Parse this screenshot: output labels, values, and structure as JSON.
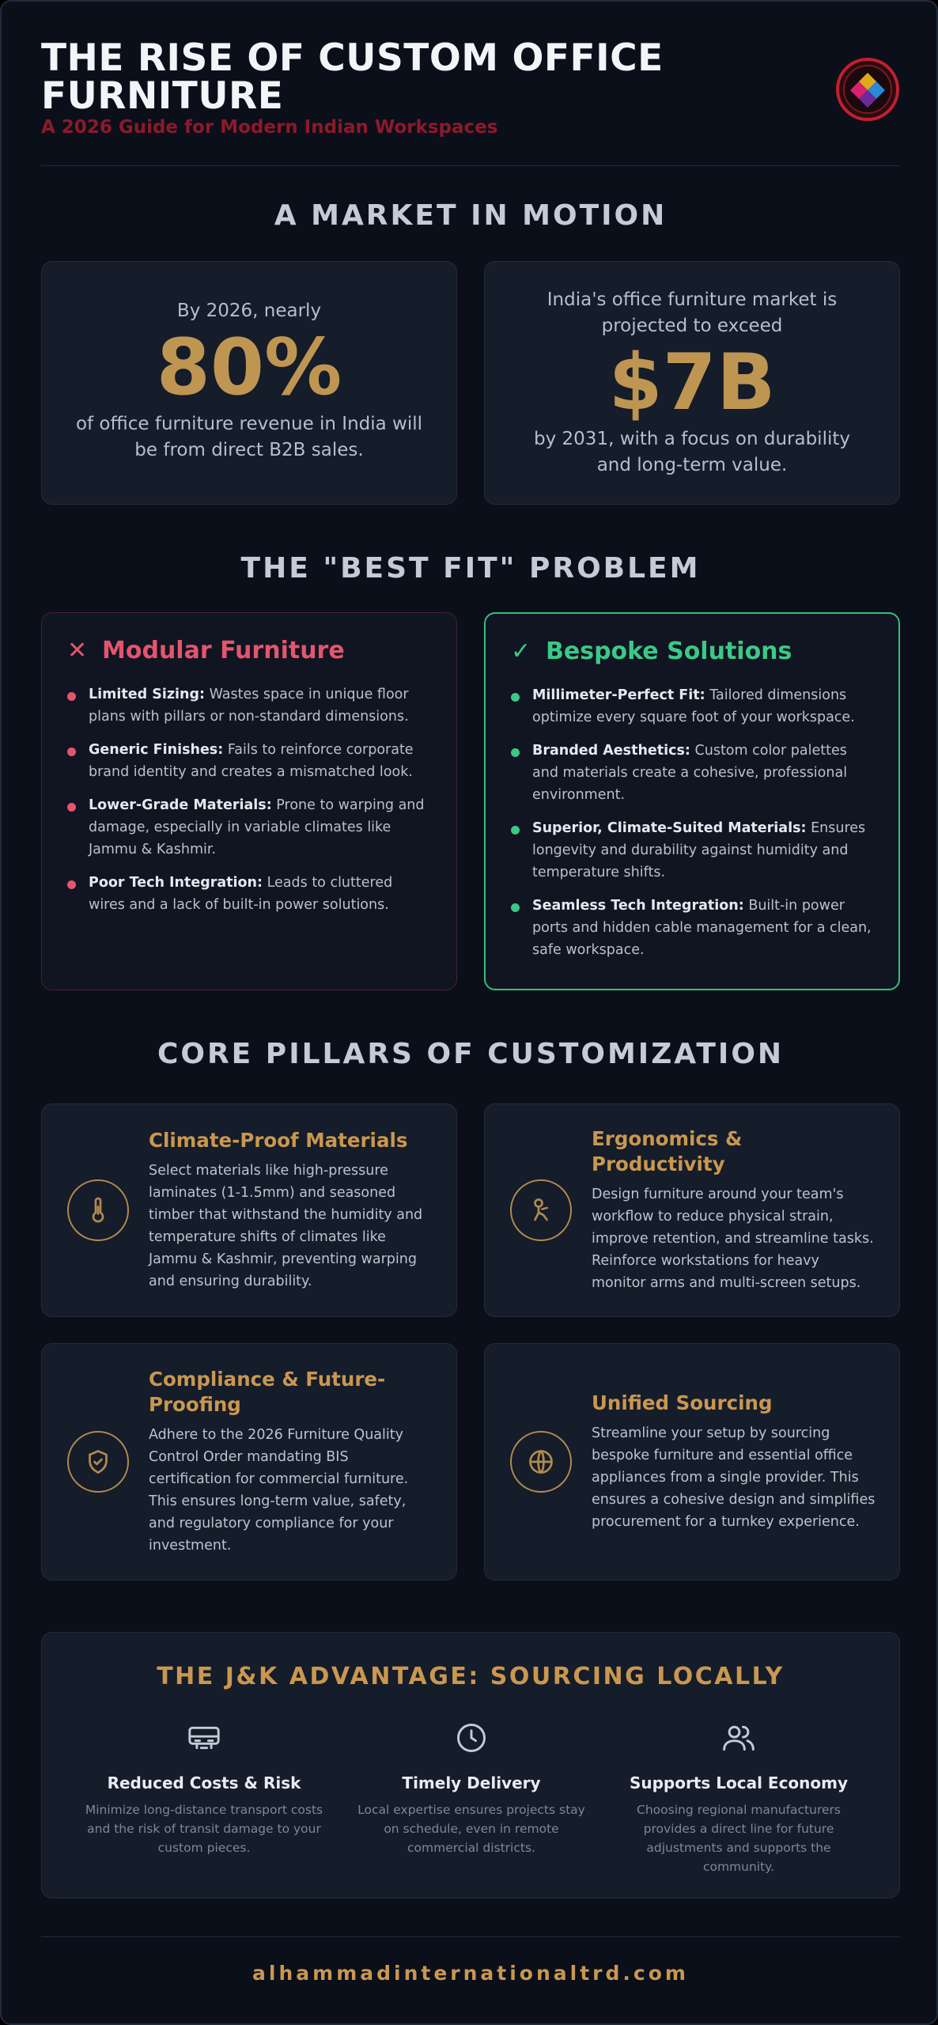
{
  "header": {
    "title": "THE RISE OF CUSTOM OFFICE FURNITURE",
    "subtitle": "A 2026 Guide for Modern Indian Workspaces"
  },
  "market": {
    "section_title": "A MARKET IN MOTION",
    "stats": [
      {
        "pre": "By 2026, nearly",
        "value": "80%",
        "post": "of office furniture revenue in India will be from direct B2B sales."
      },
      {
        "pre": "India's office furniture market is projected to exceed",
        "value": "$7B",
        "post": "by 2031, with a focus on durability and long-term value."
      }
    ]
  },
  "fit": {
    "section_title": "THE \"BEST FIT\" PROBLEM",
    "modular": {
      "heading": "Modular Furniture",
      "items": [
        {
          "label": "Limited Sizing:",
          "text": "Wastes space in unique floor plans with pillars or non-standard dimensions."
        },
        {
          "label": "Generic Finishes:",
          "text": "Fails to reinforce corporate brand identity and creates a mismatched look."
        },
        {
          "label": "Lower-Grade Materials:",
          "text": "Prone to warping and damage, especially in variable climates like Jammu & Kashmir."
        },
        {
          "label": "Poor Tech Integration:",
          "text": "Leads to cluttered wires and a lack of built-in power solutions."
        }
      ]
    },
    "bespoke": {
      "heading": "Bespoke Solutions",
      "items": [
        {
          "label": "Millimeter-Perfect Fit:",
          "text": "Tailored dimensions optimize every square foot of your workspace."
        },
        {
          "label": "Branded Aesthetics:",
          "text": "Custom color palettes and materials create a cohesive, professional environment."
        },
        {
          "label": "Superior, Climate-Suited Materials:",
          "text": "Ensures longevity and durability against humidity and temperature shifts."
        },
        {
          "label": "Seamless Tech Integration:",
          "text": "Built-in power ports and hidden cable management for a clean, safe workspace."
        }
      ]
    }
  },
  "pillars": {
    "section_title": "CORE PILLARS OF CUSTOMIZATION",
    "items": [
      {
        "icon": "thermometer-icon",
        "title": "Climate-Proof Materials",
        "body": "Select materials like high-pressure laminates (1-1.5mm) and seasoned timber that withstand the humidity and temperature shifts of climates like Jammu & Kashmir, preventing warping and ensuring durability."
      },
      {
        "icon": "ergonomics-icon",
        "title": "Ergonomics & Productivity",
        "body": "Design furniture around your team's workflow to reduce physical strain, improve retention, and streamline tasks. Reinforce workstations for heavy monitor arms and multi-screen setups."
      },
      {
        "icon": "shield-check-icon",
        "title": "Compliance & Future-Proofing",
        "body": "Adhere to the 2026 Furniture Quality Control Order mandating BIS certification for commercial furniture. This ensures long-term value, safety, and regulatory compliance for your investment."
      },
      {
        "icon": "globe-icon",
        "title": "Unified Sourcing",
        "body": "Streamline your setup by sourcing bespoke furniture and essential office appliances from a single provider. This ensures a cohesive design and simplifies procurement for a turnkey experience."
      }
    ]
  },
  "advantage": {
    "title": "THE J&K ADVANTAGE: SOURCING LOCALLY",
    "items": [
      {
        "icon": "truck-icon",
        "heading": "Reduced Costs & Risk",
        "body": "Minimize long-distance transport costs and the risk of transit damage to your custom pieces."
      },
      {
        "icon": "clock-icon",
        "heading": "Timely Delivery",
        "body": "Local expertise ensures projects stay on schedule, even in remote commercial districts."
      },
      {
        "icon": "users-icon",
        "heading": "Supports Local Economy",
        "body": "Choosing regional manufacturers provides a direct line for future adjustments and supports the community."
      }
    ]
  },
  "footer": {
    "url": "alhammadinternationaltrd.com"
  },
  "colors": {
    "background": "#0b0f1a",
    "card": "#151c2a",
    "gold": "#c9974f",
    "red": "#e5546e",
    "green": "#3cc886",
    "subtitle": "#8c1a2a"
  }
}
